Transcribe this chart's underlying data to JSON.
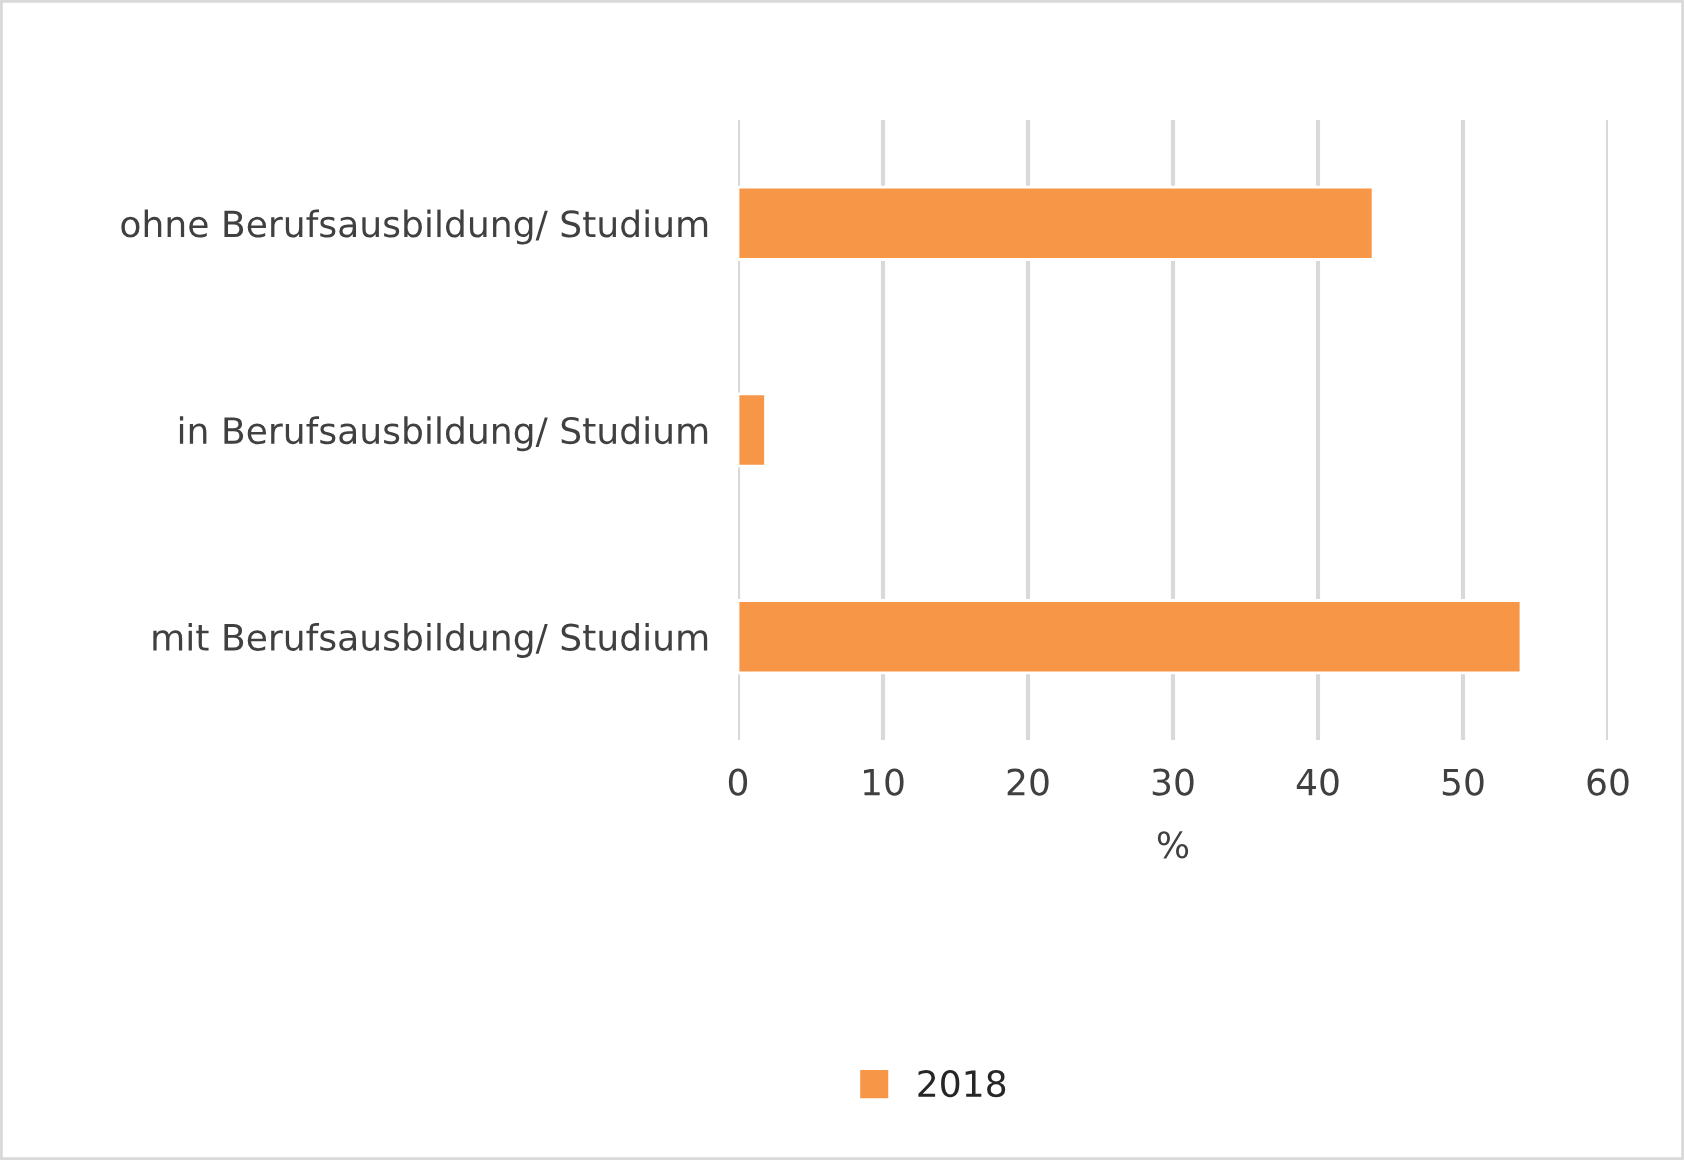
{
  "chart_data": {
    "type": "bar",
    "orientation": "horizontal",
    "categories": [
      "ohne Berufsausbildung/ Studium",
      "in Berufsausbildung/ Studium",
      "mit Berufsausbildung/ Studium"
    ],
    "series": [
      {
        "name": "2018",
        "color": "#f79646",
        "values": [
          43.8,
          1.9,
          54.0
        ]
      }
    ],
    "xlabel": "%",
    "xlim": [
      0,
      60
    ],
    "xticks": [
      0,
      10,
      20,
      30,
      40,
      50,
      60
    ],
    "grid": "x",
    "legend": "bottom"
  }
}
